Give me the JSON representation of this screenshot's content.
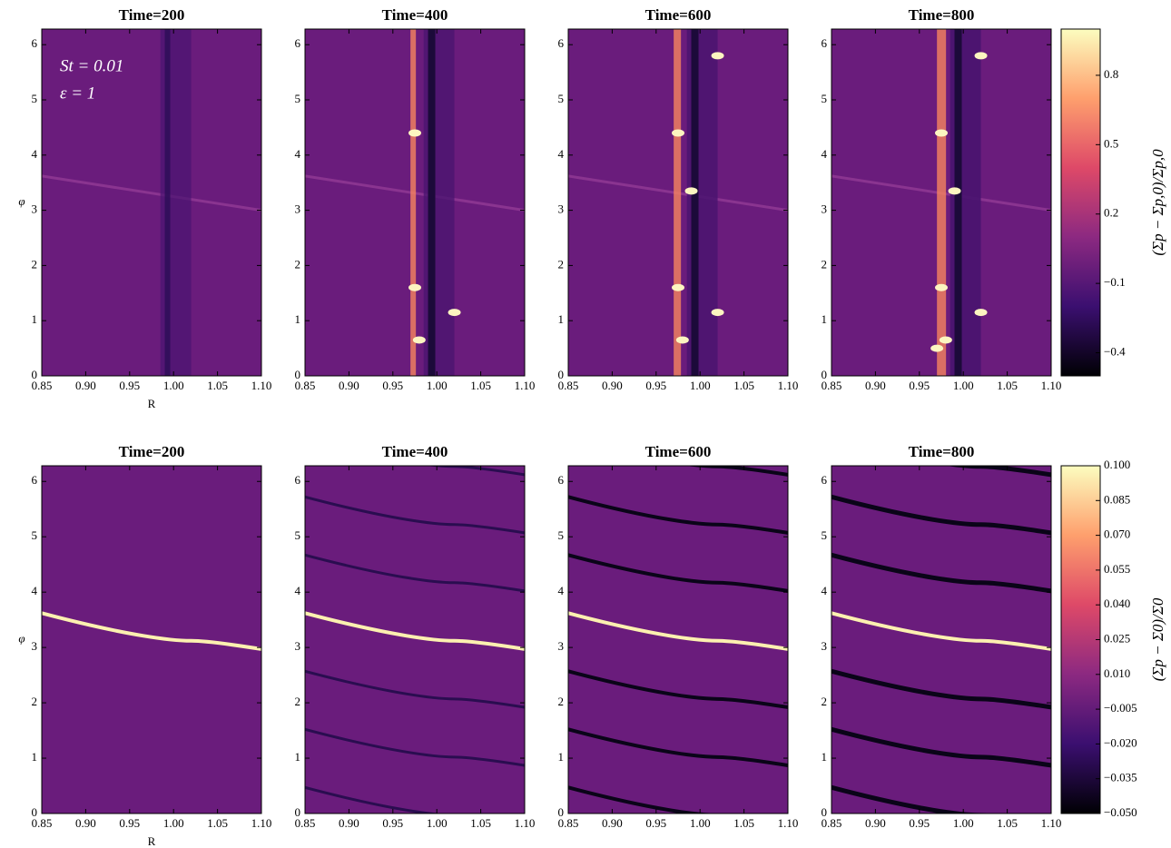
{
  "chart_data": [
    {
      "type": "heatmap",
      "title": "Time=200",
      "xlabel": "R",
      "ylabel": "φ",
      "annotations": [
        "St = 0.01",
        "ε = 1"
      ],
      "xlim": [
        0.85,
        1.1
      ],
      "xticks": [
        0.85,
        {
          "value": 0.9,
          "label": "0.90"
        },
        0.95,
        {
          "value": 1,
          "label": "1.00"
        },
        1.05,
        {
          "value": 1.1,
          "label": "1.10"
        }
      ],
      "ylim": [
        0,
        6.283
      ],
      "yticks": [
        0,
        1,
        2,
        3,
        4,
        5,
        6
      ]
    },
    {
      "type": "heatmap",
      "title": "Time=400",
      "xlim": [
        0.85,
        1.1
      ],
      "xticks": [
        0.85,
        {
          "value": 0.9,
          "label": "0.90"
        },
        0.95,
        {
          "value": 1,
          "label": "1.00"
        },
        1.05,
        {
          "value": 1.1,
          "label": "1.10"
        }
      ],
      "ylim": [
        0,
        6.283
      ],
      "yticks": [
        0,
        1,
        2,
        3,
        4,
        5,
        6
      ]
    },
    {
      "type": "heatmap",
      "title": "Time=600",
      "xlim": [
        0.85,
        1.1
      ],
      "xticks": [
        0.85,
        {
          "value": 0.9,
          "label": "0.90"
        },
        0.95,
        {
          "value": 1,
          "label": "1.00"
        },
        1.05,
        {
          "value": 1.1,
          "label": "1.10"
        }
      ],
      "ylim": [
        0,
        6.283
      ],
      "yticks": [
        0,
        1,
        2,
        3,
        4,
        5,
        6
      ]
    },
    {
      "type": "heatmap",
      "title": "Time=800",
      "xlim": [
        0.85,
        1.1
      ],
      "xticks": [
        0.85,
        {
          "value": 0.9,
          "label": "0.90"
        },
        0.95,
        {
          "value": 1,
          "label": "1.00"
        },
        1.05,
        {
          "value": 1.1,
          "label": "1.10"
        }
      ],
      "ylim": [
        0,
        6.283
      ],
      "yticks": [
        0,
        1,
        2,
        3,
        4,
        5,
        6
      ],
      "colorbar": {
        "label": "(Σp − Σp,0)/Σp,0",
        "zlim": [
          -0.5,
          1.0
        ],
        "zticks": [
          {
            "value": -0.4,
            "label": "−0.4"
          },
          {
            "value": -0.1,
            "label": "−0.1"
          },
          0.2,
          0.5,
          0.8
        ]
      }
    },
    {
      "type": "heatmap",
      "title": "Time=200",
      "xlabel": "R",
      "ylabel": "φ",
      "xlim": [
        0.85,
        1.1
      ],
      "xticks": [
        0.85,
        {
          "value": 0.9,
          "label": "0.90"
        },
        0.95,
        {
          "value": 1,
          "label": "1.00"
        },
        1.05,
        {
          "value": 1.1,
          "label": "1.10"
        }
      ],
      "ylim": [
        0,
        6.283
      ],
      "yticks": [
        0,
        1,
        2,
        3,
        4,
        5,
        6
      ]
    },
    {
      "type": "heatmap",
      "title": "Time=400",
      "xlim": [
        0.85,
        1.1
      ],
      "xticks": [
        0.85,
        {
          "value": 0.9,
          "label": "0.90"
        },
        0.95,
        {
          "value": 1,
          "label": "1.00"
        },
        1.05,
        {
          "value": 1.1,
          "label": "1.10"
        }
      ],
      "ylim": [
        0,
        6.283
      ],
      "yticks": [
        0,
        1,
        2,
        3,
        4,
        5,
        6
      ]
    },
    {
      "type": "heatmap",
      "title": "Time=600",
      "xlim": [
        0.85,
        1.1
      ],
      "xticks": [
        0.85,
        {
          "value": 0.9,
          "label": "0.90"
        },
        0.95,
        {
          "value": 1,
          "label": "1.00"
        },
        1.05,
        {
          "value": 1.1,
          "label": "1.10"
        }
      ],
      "ylim": [
        0,
        6.283
      ],
      "yticks": [
        0,
        1,
        2,
        3,
        4,
        5,
        6
      ]
    },
    {
      "type": "heatmap",
      "title": "Time=800",
      "xlim": [
        0.85,
        1.1
      ],
      "xticks": [
        0.85,
        {
          "value": 0.9,
          "label": "0.90"
        },
        0.95,
        {
          "value": 1,
          "label": "1.00"
        },
        1.05,
        {
          "value": 1.1,
          "label": "1.10"
        }
      ],
      "ylim": [
        0,
        6.283
      ],
      "yticks": [
        0,
        1,
        2,
        3,
        4,
        5,
        6
      ],
      "colorbar": {
        "label": "(Σp − Σ0)/Σ0",
        "zlim": [
          -0.05,
          0.1
        ],
        "zticks": [
          {
            "value": -0.05,
            "label": "−0.050"
          },
          {
            "value": -0.035,
            "label": "−0.035"
          },
          {
            "value": -0.02,
            "label": "−0.020"
          },
          {
            "value": -0.005,
            "label": "−0.005"
          },
          {
            "value": 0.01,
            "label": "0.010"
          },
          {
            "value": 0.025,
            "label": "0.025"
          },
          {
            "value": 0.04,
            "label": "0.040"
          },
          {
            "value": 0.055,
            "label": "0.055"
          },
          {
            "value": 0.07,
            "label": "0.070"
          },
          {
            "value": 0.085,
            "label": "0.085"
          },
          {
            "value": 0.1,
            "label": "0.100"
          }
        ]
      }
    }
  ]
}
